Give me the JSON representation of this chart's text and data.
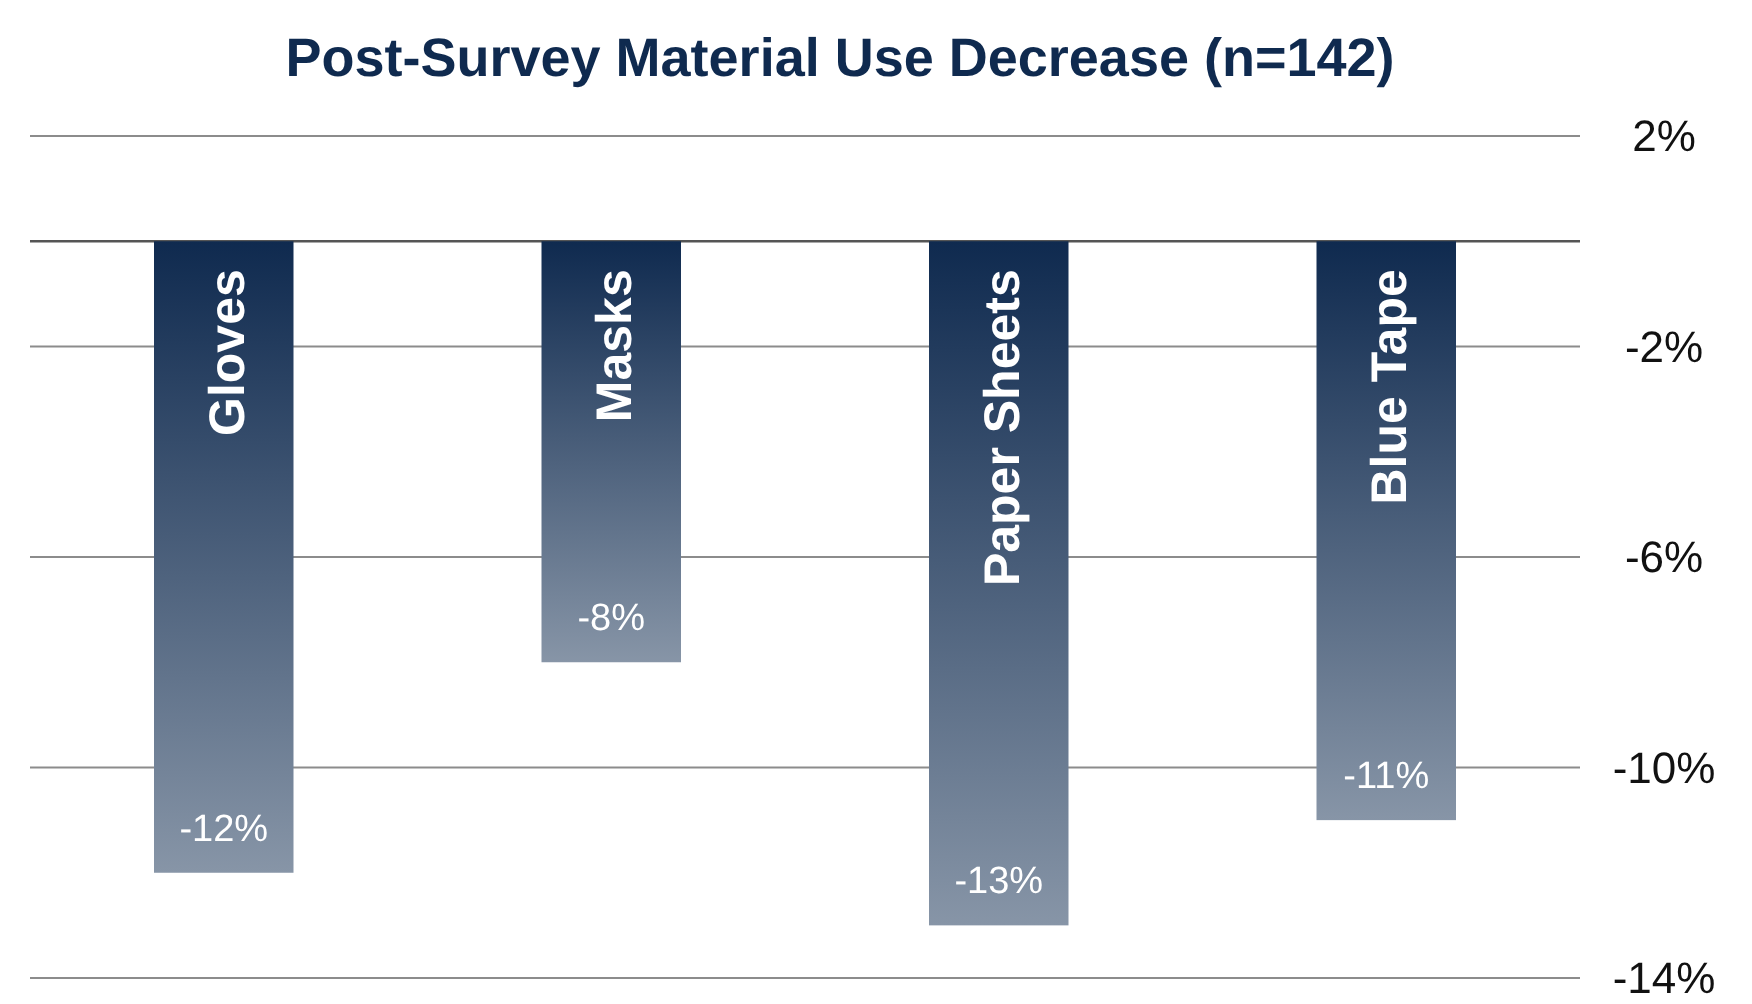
{
  "chart_data": {
    "type": "bar",
    "title": "Post-Survey Material Use Decrease (n=142)",
    "categories": [
      "Gloves",
      "Masks",
      "Paper Sheets",
      "Blue Tape"
    ],
    "values": [
      -12,
      -8,
      -13,
      -11
    ],
    "value_labels": [
      "-12%",
      "-8%",
      "-13%",
      "-11%"
    ],
    "color": "#0f2a4f",
    "ylim": [
      -14,
      2
    ],
    "yticks": [
      {
        "value": 2,
        "label": "2%"
      },
      {
        "value": -2,
        "label": "-2%"
      },
      {
        "value": -6,
        "label": "-6%"
      },
      {
        "value": -10,
        "label": "-10%"
      },
      {
        "value": -14,
        "label": "-14%"
      }
    ],
    "grid": "y"
  }
}
